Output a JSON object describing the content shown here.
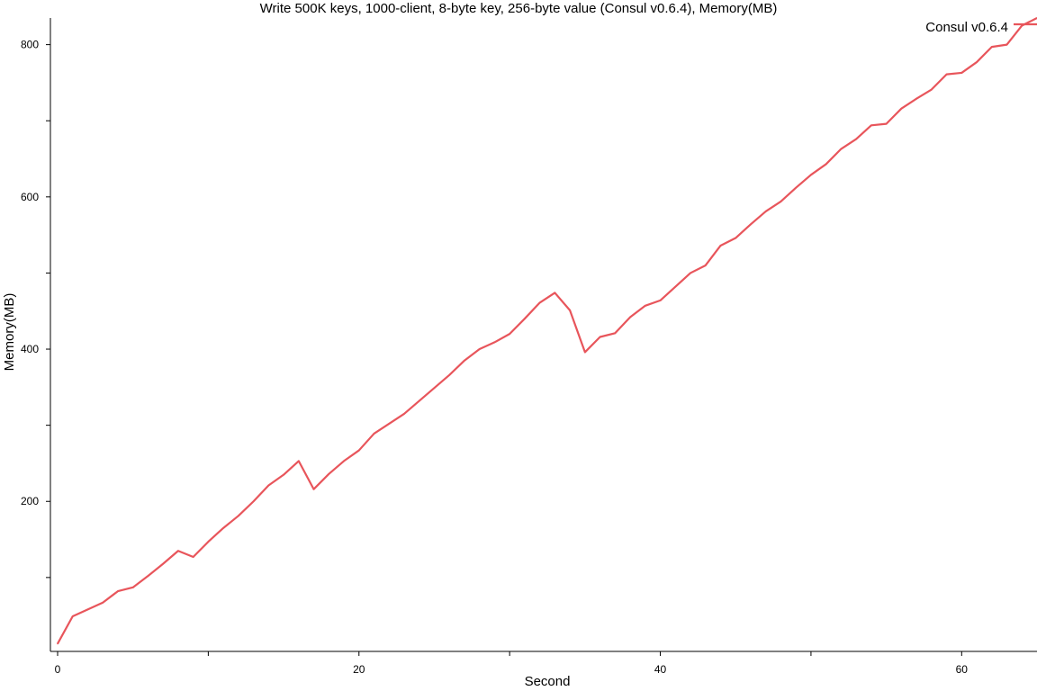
{
  "chart_data": {
    "type": "line",
    "title": "Write 500K keys, 1000-client, 8-byte key, 256-byte value (Consul v0.6.4), Memory(MB)",
    "xlabel": "Second",
    "ylabel": "Memory(MB)",
    "xlim": [
      0,
      65
    ],
    "ylim": [
      10,
      835
    ],
    "x_ticks": [
      0,
      10,
      20,
      30,
      40,
      50,
      60
    ],
    "x_tick_labels": [
      "0",
      "",
      "20",
      "",
      "40",
      "",
      "60"
    ],
    "y_ticks": [
      100,
      200,
      300,
      400,
      500,
      600,
      700,
      800
    ],
    "y_tick_labels": [
      "",
      "200",
      "",
      "400",
      "",
      "600",
      "",
      "800"
    ],
    "grid": false,
    "legend_position": "top-right",
    "series": [
      {
        "name": "Consul v0.6.4",
        "color": "#e8555b",
        "x": [
          0,
          1,
          2,
          3,
          4,
          5,
          6,
          7,
          8,
          9,
          10,
          11,
          12,
          13,
          14,
          15,
          16,
          17,
          18,
          19,
          20,
          21,
          22,
          23,
          24,
          25,
          26,
          27,
          28,
          29,
          30,
          31,
          32,
          33,
          34,
          35,
          36,
          37,
          38,
          39,
          40,
          41,
          42,
          43,
          44,
          45,
          46,
          47,
          48,
          49,
          50,
          51,
          52,
          53,
          54,
          55,
          56,
          57,
          58,
          59,
          60,
          61,
          62,
          63,
          64,
          65
        ],
        "values": [
          13,
          49,
          58,
          67,
          82,
          87,
          102,
          118,
          135,
          127,
          147,
          165,
          181,
          200,
          221,
          235,
          253,
          216,
          236,
          253,
          267,
          289,
          302,
          315,
          332,
          349,
          366,
          385,
          400,
          409,
          420,
          440,
          461,
          474,
          451,
          396,
          416,
          421,
          442,
          457,
          464,
          482,
          500,
          510,
          536,
          546,
          564,
          581,
          594,
          612,
          629,
          643,
          663,
          676,
          694,
          696,
          716,
          729,
          741,
          761,
          763,
          777,
          797,
          800,
          825,
          835
        ]
      }
    ]
  }
}
